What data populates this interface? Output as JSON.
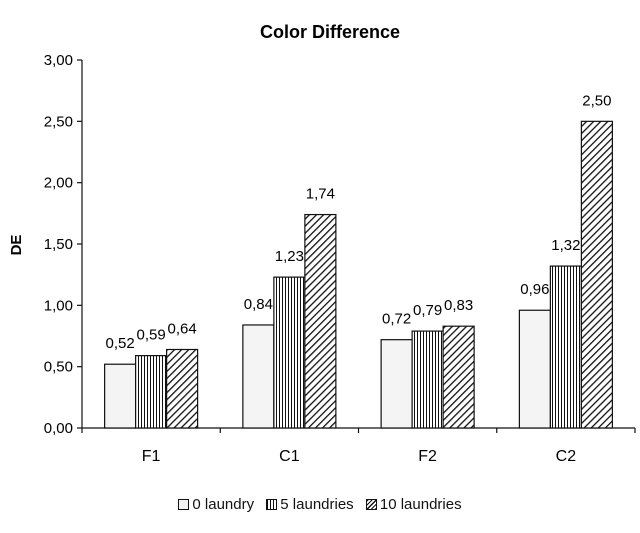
{
  "chart_data": {
    "type": "bar",
    "title": "Color Difference",
    "ylabel": "DE",
    "xlabel": "",
    "categories": [
      "F1",
      "C1",
      "F2",
      "C2"
    ],
    "yticks": [
      "0,00",
      "0,50",
      "1,00",
      "1,50",
      "2,00",
      "2,50",
      "3,00"
    ],
    "ylim": [
      0,
      3
    ],
    "grid": false,
    "legend_position": "bottom",
    "series": [
      {
        "name": "0 laundry",
        "values": [
          0.52,
          0.84,
          0.72,
          0.96
        ],
        "labels": [
          "0,52",
          "0,84",
          "0,72",
          "0,96"
        ]
      },
      {
        "name": "5 laundries",
        "values": [
          0.59,
          1.23,
          0.79,
          1.32
        ],
        "labels": [
          "0,59",
          "1,23",
          "0,79",
          "1,32"
        ]
      },
      {
        "name": "10 laundries",
        "values": [
          0.64,
          1.74,
          0.83,
          2.5
        ],
        "labels": [
          "0,64",
          "1,74",
          "0,83",
          "2,50"
        ]
      }
    ]
  }
}
